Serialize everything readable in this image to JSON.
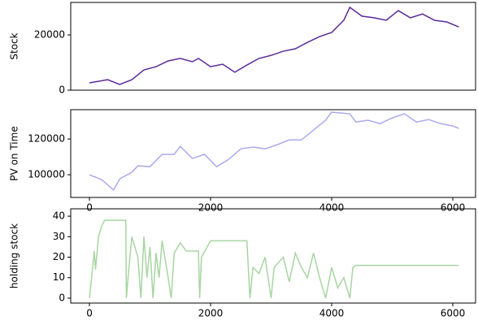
{
  "chart_data": [
    {
      "type": "line",
      "y_label": "Stock",
      "x": [
        0,
        300,
        500,
        700,
        900,
        1100,
        1300,
        1500,
        1700,
        1800,
        2000,
        2200,
        2400,
        2600,
        2800,
        3000,
        3200,
        3400,
        3600,
        3800,
        4000,
        4200,
        4300,
        4500,
        4700,
        4900,
        5100,
        5300,
        5500,
        5700,
        5900,
        6100
      ],
      "series": [
        {
          "color": "#5b2a9a",
          "values": [
            2650,
            3800,
            2060,
            3800,
            7350,
            8500,
            10600,
            11500,
            10300,
            11500,
            8500,
            9400,
            6500,
            9100,
            11500,
            12600,
            14100,
            15000,
            17300,
            19400,
            20900,
            25300,
            30000,
            26800,
            26200,
            25300,
            28800,
            26200,
            27600,
            25300,
            24700,
            22900
          ]
        }
      ],
      "xlim": [
        -309,
        6376
      ],
      "ylim": [
        0,
        31765
      ],
      "yticks": [
        0,
        20000
      ]
    },
    {
      "type": "line",
      "y_label": "PV on Time",
      "x": [
        0,
        200,
        400,
        500,
        700,
        800,
        1000,
        1200,
        1400,
        1500,
        1700,
        1900,
        2100,
        2300,
        2500,
        2700,
        2900,
        3100,
        3300,
        3500,
        3700,
        3900,
        4000,
        4300,
        4400,
        4600,
        4800,
        5000,
        5200,
        5400,
        5600,
        5800,
        6000,
        6100
      ],
      "series": [
        {
          "color": "#aaaaee",
          "values": [
            100000,
            97300,
            91400,
            97700,
            101400,
            105000,
            104500,
            111400,
            111400,
            115900,
            109100,
            111400,
            104500,
            108600,
            114500,
            115500,
            114500,
            116800,
            119500,
            119500,
            125000,
            130500,
            135000,
            134100,
            129500,
            130500,
            128600,
            131800,
            134100,
            129500,
            130900,
            128600,
            127300,
            125900
          ]
        }
      ],
      "xlim": [
        -309,
        6376
      ],
      "ylim": [
        87300,
        136400
      ],
      "xticks": [
        0,
        2000,
        4000,
        6000
      ],
      "yticks": [
        100000,
        120000
      ]
    },
    {
      "type": "line",
      "y_label": "holding stock",
      "x": [
        0,
        50,
        80,
        100,
        150,
        200,
        250,
        600,
        610,
        650,
        700,
        800,
        850,
        900,
        950,
        1000,
        1050,
        1100,
        1150,
        1200,
        1300,
        1350,
        1400,
        1500,
        1600,
        1800,
        1820,
        1850,
        2000,
        2600,
        2650,
        2700,
        2800,
        2900,
        3000,
        3050,
        3200,
        3300,
        3400,
        3500,
        3600,
        3700,
        3800,
        3900,
        4000,
        4100,
        4200,
        4300,
        4350,
        4400,
        6100
      ],
      "series": [
        {
          "color": "#a8d5a2",
          "values": [
            0,
            14,
            23,
            14,
            30,
            35,
            38,
            38,
            0,
            14,
            30,
            20,
            0,
            30,
            10,
            25,
            0,
            22,
            10,
            28,
            10,
            0,
            22,
            27,
            23,
            23,
            0,
            20,
            28,
            28,
            0,
            15,
            12,
            20,
            0,
            15,
            20,
            8,
            22,
            15,
            10,
            22,
            10,
            0,
            15,
            5,
            10,
            0,
            15,
            16,
            16
          ]
        }
      ],
      "xlim": [
        -309,
        6376
      ],
      "ylim": [
        -2.4,
        43.6
      ],
      "xticks": [
        0,
        2000,
        4000,
        6000
      ],
      "yticks": [
        0,
        10,
        20,
        30,
        40
      ]
    }
  ]
}
